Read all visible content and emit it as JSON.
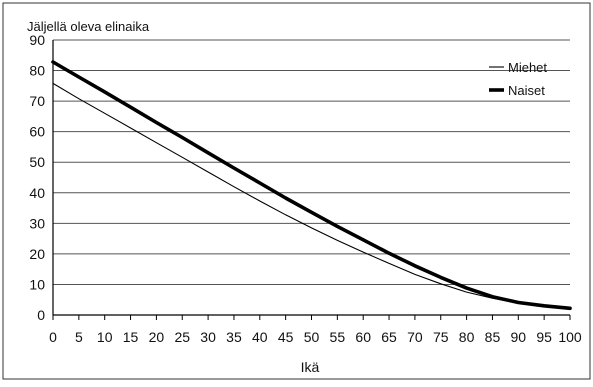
{
  "chart_data": {
    "type": "line",
    "title": "Jäljellä oleva elinaika",
    "xlabel": "Ikä",
    "ylabel": "",
    "xlim": [
      0,
      100
    ],
    "ylim": [
      0,
      90
    ],
    "x_ticks": [
      "0",
      "5",
      "10",
      "15",
      "20",
      "25",
      "30",
      "35",
      "40",
      "45",
      "50",
      "55",
      "60",
      "65",
      "70",
      "75",
      "80",
      "85",
      "90",
      "95",
      "100"
    ],
    "y_ticks": [
      "0",
      "10",
      "20",
      "30",
      "40",
      "50",
      "60",
      "70",
      "80",
      "90"
    ],
    "grid": "horizontal",
    "legend_position": "top-right",
    "x": [
      0,
      5,
      10,
      15,
      20,
      25,
      30,
      35,
      40,
      45,
      50,
      55,
      60,
      65,
      70,
      75,
      80,
      85,
      90,
      95,
      100
    ],
    "series": [
      {
        "name": "Miehet",
        "style": "thin",
        "color": "#000000",
        "values": [
          75.8,
          70.8,
          66.0,
          61.2,
          56.4,
          51.6,
          46.8,
          42.0,
          37.3,
          32.8,
          28.5,
          24.4,
          20.6,
          16.9,
          13.3,
          10.2,
          7.5,
          5.5,
          3.9,
          2.9,
          2.2
        ]
      },
      {
        "name": "Naiset",
        "style": "thick",
        "color": "#000000",
        "values": [
          82.8,
          77.9,
          73.0,
          68.0,
          63.0,
          58.1,
          53.1,
          48.1,
          43.2,
          38.3,
          33.6,
          29.0,
          24.6,
          20.2,
          16.1,
          12.3,
          8.8,
          6.0,
          4.1,
          3.0,
          2.2
        ]
      }
    ]
  }
}
